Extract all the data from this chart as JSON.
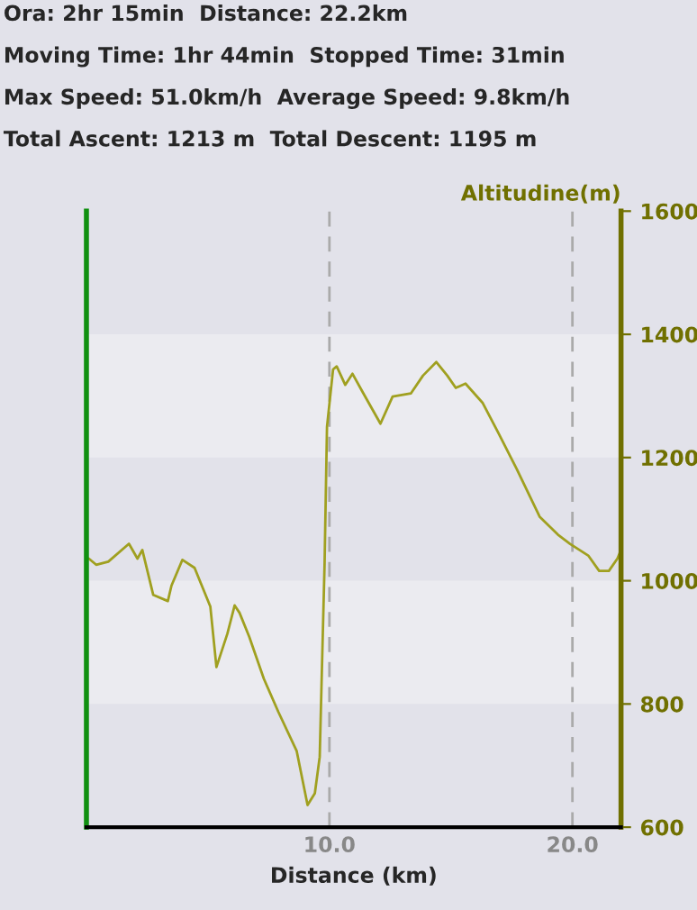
{
  "chart_data": {
    "type": "line",
    "annotations": [
      "Ora: 2hr 15min  Distance: 22.2km",
      "Moving Time: 1hr 44min  Stopped Time: 31min",
      "Max Speed: 51.0km/h  Average Speed: 9.8km/h",
      "Total Ascent: 1213 m  Total Descent: 1195 m"
    ],
    "xlabel": "Distance (km)",
    "ylabel": "Altitudine(m)",
    "xlim": [
      0,
      22
    ],
    "xticks": [
      {
        "value": 10,
        "label": "10.0"
      },
      {
        "value": 20,
        "label": "20.0"
      }
    ],
    "ylim": [
      600,
      1600
    ],
    "yticks": [
      600,
      800,
      1000,
      1200,
      1400,
      1600
    ],
    "grid": true,
    "series": [
      {
        "color": "#a0a020",
        "x": [
          0.1,
          0.4,
          0.9,
          1.75,
          2.1,
          2.3,
          2.75,
          3.35,
          3.5,
          3.95,
          4.45,
          5.1,
          5.35,
          5.8,
          6.1,
          6.3,
          6.7,
          7.3,
          7.9,
          8.65,
          9.1,
          9.4,
          9.6,
          9.8,
          9.9,
          10.15,
          10.3,
          10.65,
          10.95,
          11.4,
          12.1,
          12.6,
          13.35,
          13.85,
          14.4,
          14.85,
          15.2,
          15.6,
          16.3,
          16.95,
          17.7,
          18.65,
          19.4,
          19.9,
          20.65,
          21.1,
          21.5,
          21.85,
          22.0
        ],
        "values": [
          1036,
          1026,
          1031,
          1060,
          1036,
          1050,
          977,
          967,
          992,
          1034,
          1021,
          958,
          860,
          914,
          960,
          948,
          909,
          841,
          787,
          724,
          636,
          655,
          714,
          1027,
          1250,
          1343,
          1348,
          1318,
          1336,
          1304,
          1255,
          1299,
          1304,
          1333,
          1355,
          1333,
          1313,
          1320,
          1289,
          1240,
          1182,
          1104,
          1075,
          1060,
          1041,
          1016,
          1016,
          1036,
          1050
        ]
      }
    ]
  }
}
